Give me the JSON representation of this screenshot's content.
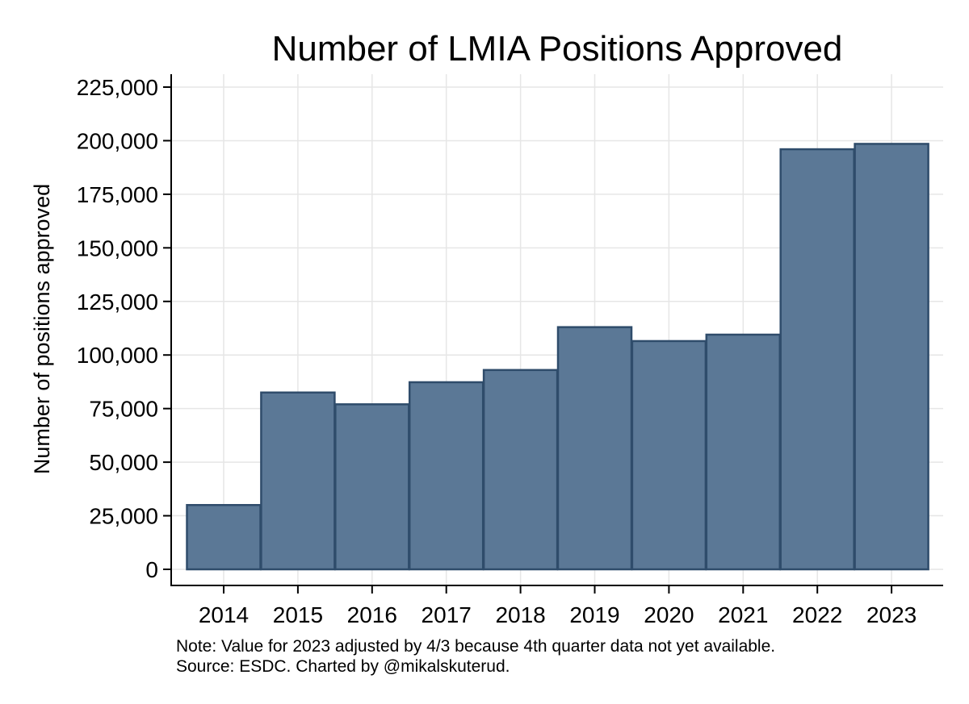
{
  "chart_data": {
    "type": "bar",
    "title": "Number of LMIA Positions Approved",
    "xlabel": "",
    "ylabel": "Number of positions approved",
    "categories": [
      "2014",
      "2015",
      "2016",
      "2017",
      "2018",
      "2019",
      "2020",
      "2021",
      "2022",
      "2023"
    ],
    "values": [
      30000,
      82500,
      77000,
      87300,
      93000,
      113000,
      106500,
      109500,
      196000,
      198500
    ],
    "ylim": [
      0,
      225000
    ],
    "yticks": [
      0,
      25000,
      50000,
      75000,
      100000,
      125000,
      150000,
      175000,
      200000,
      225000
    ],
    "ytick_labels": [
      "0",
      "25,000",
      "50,000",
      "75,000",
      "100,000",
      "125,000",
      "150,000",
      "175,000",
      "200,000",
      "225,000"
    ],
    "grid": true,
    "bar_color": "#5b7896",
    "bar_edge_color": "#2f4c6b",
    "grid_color": "#e6e6e6"
  },
  "notes": {
    "note": "Note: Value for 2023 adjusted by 4/3 because 4th quarter data not yet available.",
    "source": "Source: ESDC. Charted by @mikalskuterud."
  }
}
